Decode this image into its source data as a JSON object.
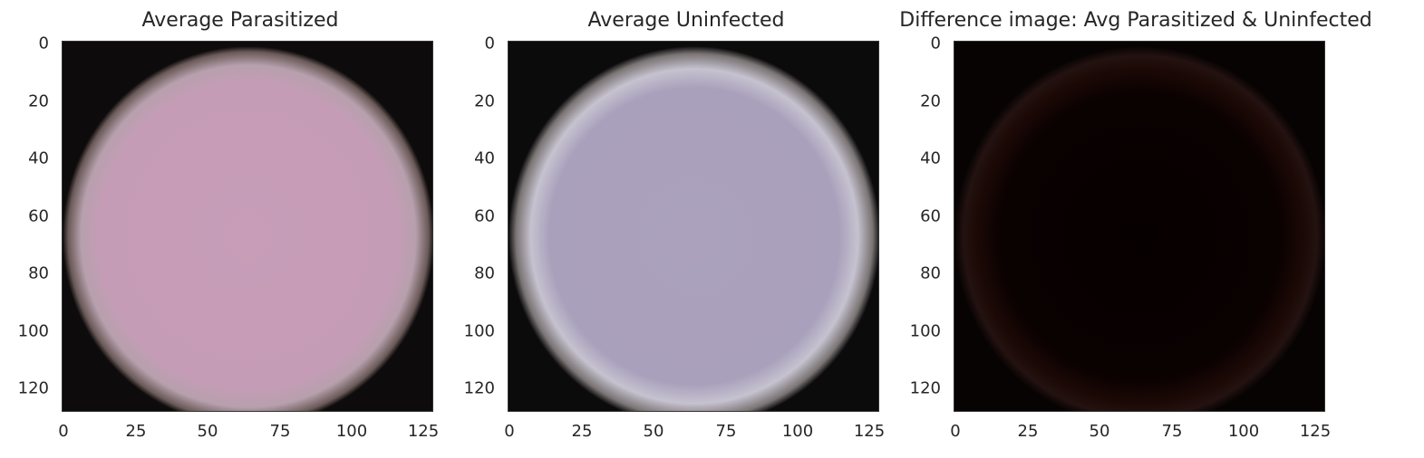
{
  "figure": {
    "panels": [
      {
        "title": "Average Parasitized",
        "image": "average-parasitized-cell",
        "colors": {
          "background": "#0d0b0b",
          "rim": "#cdbdbc",
          "fill": "#c39ab5"
        },
        "x_ticks": [
          "0",
          "25",
          "50",
          "75",
          "100",
          "125"
        ],
        "y_ticks": [
          "0",
          "20",
          "40",
          "60",
          "80",
          "100",
          "120"
        ]
      },
      {
        "title": "Average Uninfected",
        "image": "average-uninfected-cell",
        "colors": {
          "background": "#0c0b0c",
          "rim": "#d3d0d6",
          "fill": "#a99fbc"
        },
        "x_ticks": [
          "0",
          "25",
          "50",
          "75",
          "100",
          "125"
        ],
        "y_ticks": [
          "0",
          "20",
          "40",
          "60",
          "80",
          "100",
          "120"
        ]
      },
      {
        "title": "Difference image: Avg Parasitized & Uninfected",
        "image": "difference-cell",
        "colors": {
          "background": "#070303",
          "rim": "#2a140e",
          "fill": "#080000"
        },
        "x_ticks": [
          "0",
          "25",
          "50",
          "75",
          "100",
          "125"
        ],
        "y_ticks": [
          "0",
          "20",
          "40",
          "60",
          "80",
          "100",
          "120"
        ]
      }
    ]
  }
}
